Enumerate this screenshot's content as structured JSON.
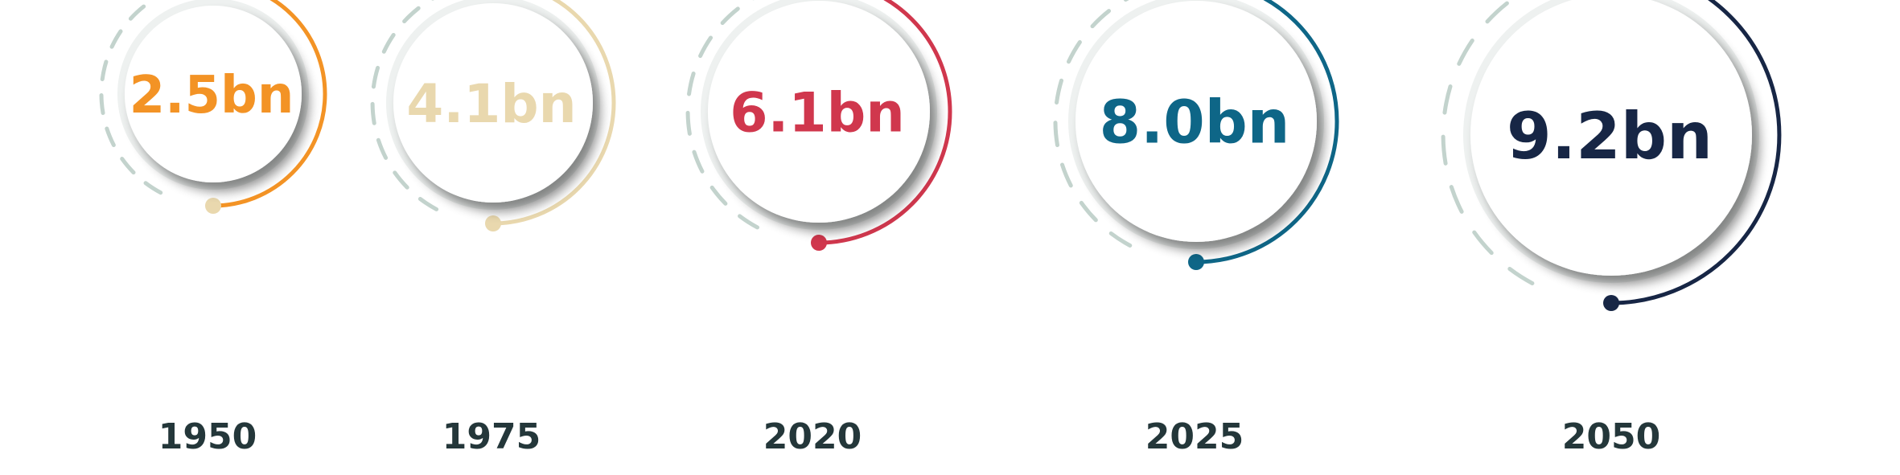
{
  "items": [
    {
      "year": "1950",
      "value": "2.5bn",
      "color": "#f39325"
    },
    {
      "year": "1975",
      "value": "4.1bn",
      "color": "#e9d8ae"
    },
    {
      "year": "2020",
      "value": "6.1bn",
      "color": "#d0374d"
    },
    {
      "year": "2025",
      "value": "8.0bn",
      "color": "#0e6687"
    },
    {
      "year": "2050",
      "value": "9.2bn",
      "color": "#172645"
    }
  ],
  "palette": {
    "dash_color": "#c3d3cd",
    "circle_fill": "#ffffff",
    "circle_rim": "#eef1f0",
    "year_color": "#24373a"
  }
}
